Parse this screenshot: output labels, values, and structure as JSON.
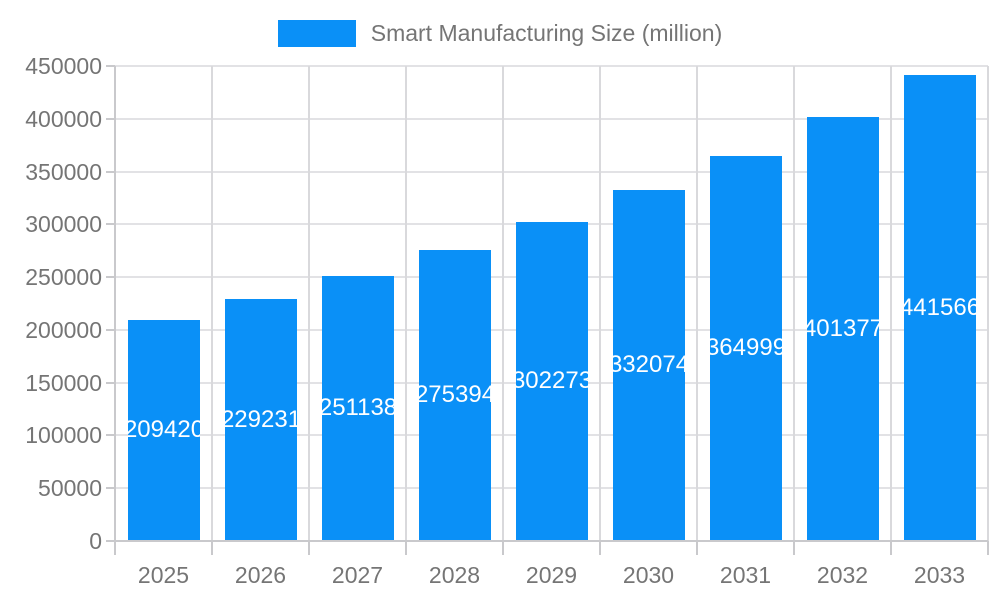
{
  "chart_data": {
    "type": "bar",
    "title": "Smart Manufacturing Size (million)",
    "categories": [
      "2025",
      "2026",
      "2027",
      "2028",
      "2029",
      "2030",
      "2031",
      "2032",
      "2033"
    ],
    "values": [
      209420,
      229231,
      251138,
      275394,
      302273,
      332074,
      364999,
      401377,
      441566
    ],
    "value_labels": [
      "209420",
      "229231",
      "251138",
      "275394",
      "302273",
      "332074",
      "364999",
      "401377",
      "441566"
    ],
    "ytick_labels": [
      "0",
      "50000",
      "100000",
      "150000",
      "200000",
      "250000",
      "300000",
      "350000",
      "400000",
      "450000"
    ],
    "ylim": [
      0,
      450000
    ],
    "ytick_step": 50000,
    "xlabel": "",
    "ylabel": "",
    "grid": true,
    "legend_position": "top",
    "colors": {
      "bar": "#0A90F7",
      "value_label": "#FFFFFF",
      "axis_text": "#757575",
      "grid_line": "#E2E2E5",
      "grid_line_vertical": "#D9D9DC",
      "axis_line": "#C9C9CC",
      "background": "#FFFFFF"
    }
  }
}
